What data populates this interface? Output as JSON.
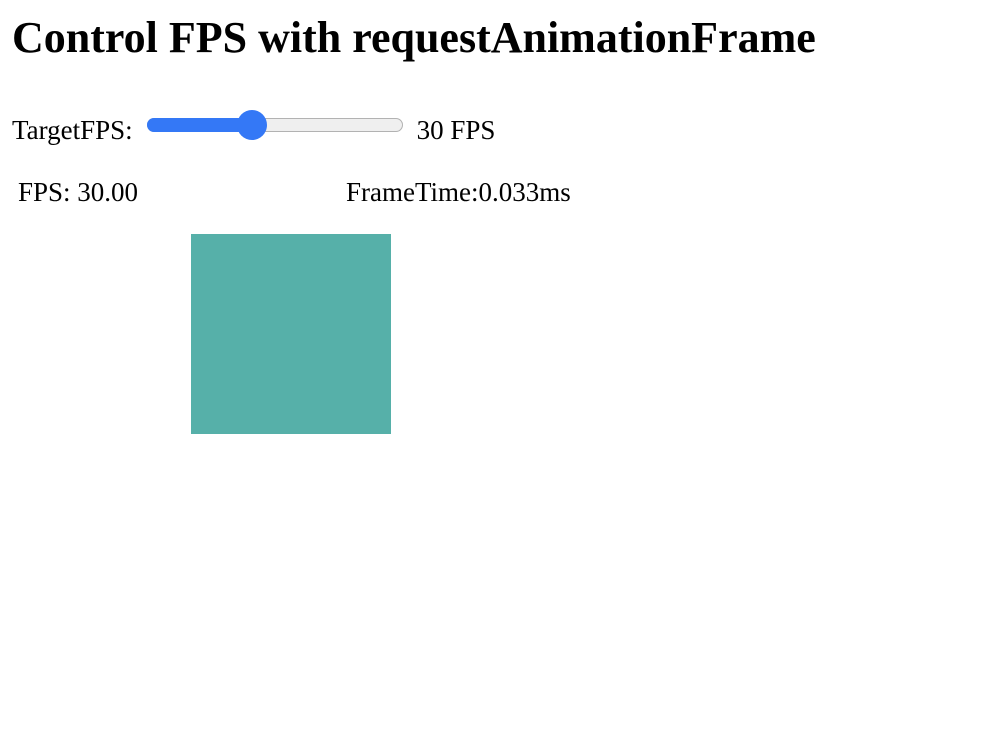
{
  "page": {
    "title": "Control FPS with requestAnimationFrame"
  },
  "controls": {
    "target_label": "TargetFPS:",
    "slider": {
      "min": 0,
      "max": 75,
      "value": 30,
      "accent_color": "#3478f6"
    },
    "fps_value_label": "30 FPS"
  },
  "stats": {
    "fps_text": "FPS: 30.00",
    "frametime_text": "FrameTime:0.033ms"
  },
  "box": {
    "color": "#56b0a9"
  }
}
